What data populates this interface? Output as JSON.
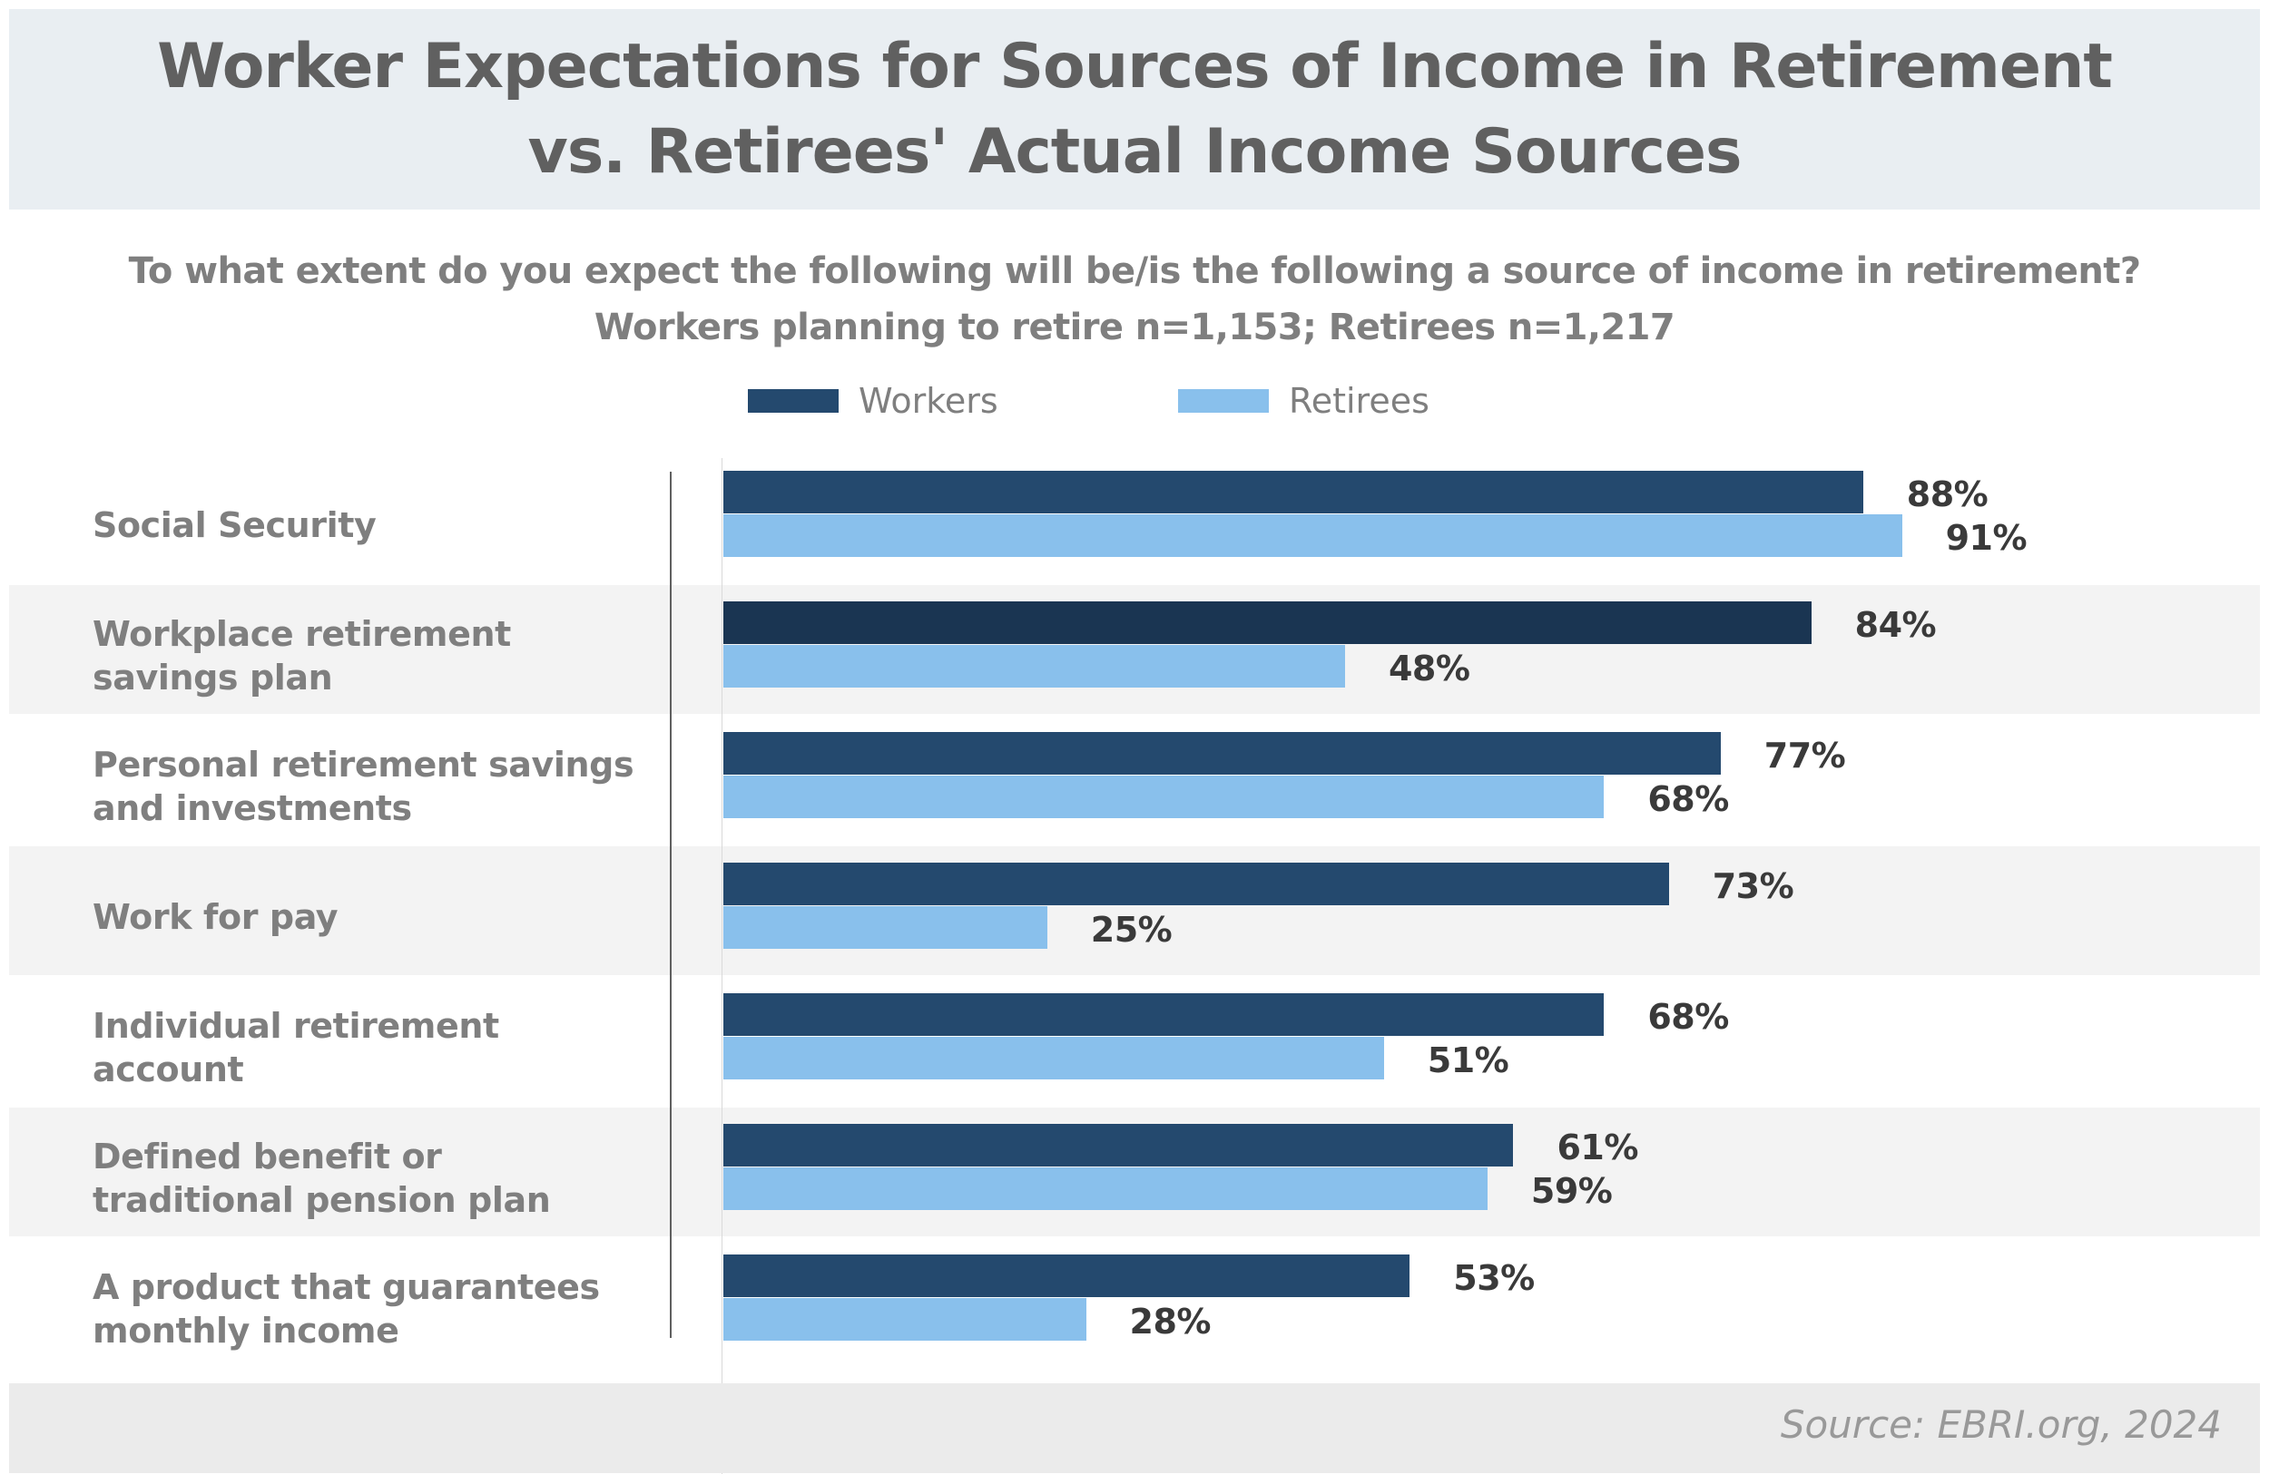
{
  "title_lines": [
    "Worker Expectations for Sources of Income in Retirement",
    "vs. Retirees' Actual Income Sources"
  ],
  "subtitle_lines": [
    "To what extent do you expect the following will be/is the following a source of income in retirement?",
    "Workers planning to retire n=1,153; Retirees n=1,217"
  ],
  "legend": {
    "workers": "Workers",
    "retirees": "Retirees"
  },
  "source": "Source: EBRI.org, 2024",
  "colors": {
    "workers": "#24496e",
    "workers_highlight": "#1a3552",
    "retirees": "#89c0ec"
  },
  "chart_data": {
    "type": "bar",
    "orientation": "horizontal",
    "title": "Worker Expectations for Sources of Income in Retirement vs. Retirees' Actual Income Sources",
    "categories": [
      "Social Security",
      "Workplace retirement savings plan",
      "Personal retirement savings and investments",
      "Work for pay",
      "Individual retirement account",
      "Defined benefit or traditional pension plan",
      "A product that guarantees monthly income"
    ],
    "category_lines": [
      [
        "Social Security"
      ],
      [
        "Workplace retirement",
        "savings plan"
      ],
      [
        "Personal retirement savings",
        "and investments"
      ],
      [
        "Work for pay"
      ],
      [
        "Individual retirement",
        "account"
      ],
      [
        "Defined benefit or",
        "traditional pension plan"
      ],
      [
        "A product that guarantees",
        "monthly income"
      ]
    ],
    "series": [
      {
        "name": "Workers",
        "values": [
          88,
          84,
          77,
          73,
          68,
          61,
          53
        ]
      },
      {
        "name": "Retirees",
        "values": [
          91,
          48,
          68,
          25,
          51,
          59,
          28
        ]
      }
    ],
    "value_suffix": "%",
    "xlim": [
      0,
      100
    ],
    "legend_position": "top-center",
    "grid": false
  }
}
